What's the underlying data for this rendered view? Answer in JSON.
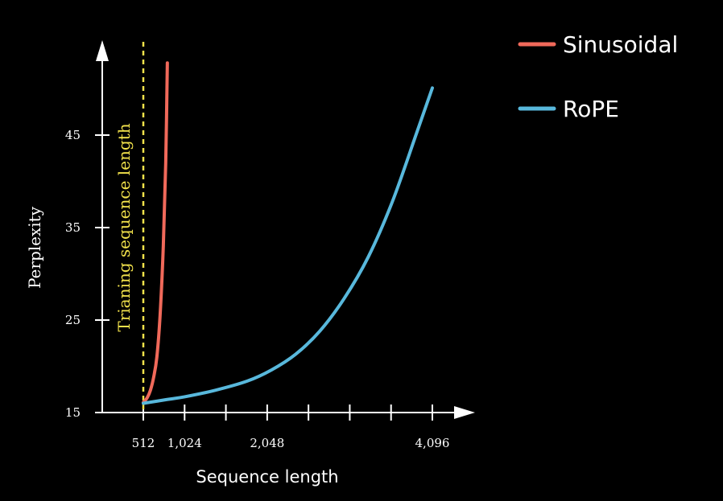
{
  "chart_data": {
    "type": "line",
    "xlabel": "Sequence length",
    "ylabel": "Perplexity",
    "x_ticks": [
      512,
      1024,
      1536,
      2048,
      2560,
      3072,
      3584,
      4096
    ],
    "x_tick_labels": [
      "512",
      "1,024",
      "",
      "2,048",
      "",
      "",
      "",
      "4,096"
    ],
    "y_ticks": [
      15,
      25,
      35,
      45
    ],
    "y_tick_labels": [
      "15",
      "25",
      "35",
      "45"
    ],
    "xlim": [
      0,
      4700
    ],
    "ylim": [
      15,
      55
    ],
    "annotation": {
      "label": "Trianing sequence length",
      "x": 512,
      "color": "#f2e24b"
    },
    "legend_position": "top-right",
    "series": [
      {
        "name": "Sinusoidal",
        "color": "#f0695a",
        "x": [
          512,
          560,
          600,
          640,
          680,
          720,
          760,
          790,
          810
        ],
        "y": [
          16.1,
          16.6,
          17.4,
          18.8,
          21.0,
          25.5,
          33.0,
          42.0,
          52.8
        ]
      },
      {
        "name": "RoPE",
        "color": "#58b8dc",
        "x": [
          512,
          800,
          1024,
          1400,
          1800,
          2100,
          2400,
          2700,
          3000,
          3300,
          3600,
          3900,
          4096
        ],
        "y": [
          16.0,
          16.4,
          16.7,
          17.4,
          18.4,
          19.6,
          21.3,
          23.8,
          27.3,
          31.8,
          37.8,
          45.2,
          50.1
        ]
      }
    ]
  }
}
